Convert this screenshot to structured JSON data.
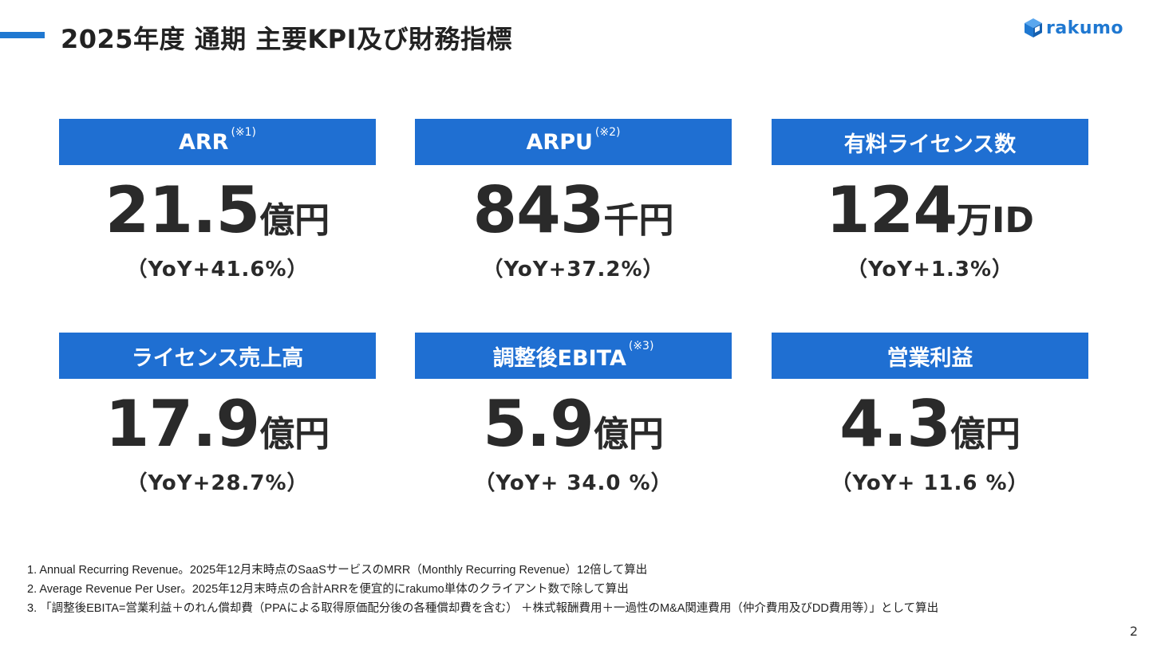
{
  "header": {
    "title": "2025年度 通期 主要KPI及び財務指標",
    "logo_text": "rakumo"
  },
  "kpis": [
    {
      "label": "ARR",
      "note": "(※1)",
      "value": "21.5",
      "unit": "億円",
      "yoy": "（YoY+41.6%）"
    },
    {
      "label": "ARPU",
      "note": "(※2)",
      "value": "843",
      "unit": "千円",
      "yoy": "（YoY+37.2%）"
    },
    {
      "label": "有料ライセンス数",
      "note": "",
      "value": "124",
      "unit": "万ID",
      "yoy": "（YoY+1.3%）"
    },
    {
      "label": "ライセンス売上高",
      "note": "",
      "value": "17.9",
      "unit": "億円",
      "yoy": "（YoY+28.7%）"
    },
    {
      "label": "調整後EBITA",
      "note": "(※3)",
      "value": "5.9",
      "unit": "億円",
      "yoy": "（YoY+ 34.0 %）"
    },
    {
      "label": "営業利益",
      "note": "",
      "value": "4.3",
      "unit": "億円",
      "yoy": "（YoY+ 11.6 %）"
    }
  ],
  "footnotes": [
    "1. Annual Recurring Revenue。2025年12月末時点のSaaSサービスのMRR（Monthly Recurring Revenue）12倍して算出",
    "2. Average Revenue Per User。2025年12月末時点の合計ARRを便宜的にrakumo単体のクライアント数で除して算出",
    "3. 「調整後EBITA=営業利益＋のれん償却費（PPAによる取得原価配分後の各種償却費を含む） ＋株式報酬費用＋一過性のM&A関連費用（仲介費用及びDD費用等）」として算出"
  ],
  "page_number": "2",
  "colors": {
    "accent": "#1f78d1",
    "header_fill": "#1f6fd2"
  },
  "icons": {
    "logo": "rakumo-cube-icon"
  }
}
